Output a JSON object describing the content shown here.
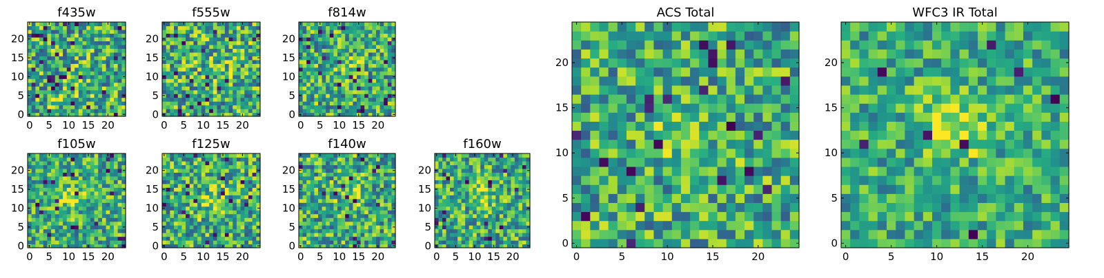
{
  "chart_data": [
    {
      "type": "heatmap",
      "title": "f435w",
      "x_ticks": [
        "0",
        "5",
        "10",
        "15",
        "20"
      ],
      "y_ticks": [
        "0",
        "5",
        "10",
        "15",
        "20"
      ],
      "xlim": [
        -0.5,
        24.5
      ],
      "ylim": [
        -0.5,
        24.5
      ],
      "grid_size": 25,
      "colormap": "viridis",
      "seed": 11,
      "blob": {
        "x": 11,
        "y": 4,
        "sigma": 4.5,
        "amp": 0.08
      },
      "noise": 0.36,
      "dark_fraction": 0.05
    },
    {
      "type": "heatmap",
      "title": "f555w",
      "x_ticks": [
        "0",
        "5",
        "10",
        "15",
        "20"
      ],
      "y_ticks": [
        "0",
        "5",
        "10",
        "15",
        "20"
      ],
      "xlim": [
        -0.5,
        24.5
      ],
      "ylim": [
        -0.5,
        24.5
      ],
      "grid_size": 25,
      "colormap": "viridis",
      "seed": 23,
      "blob": {
        "x": 14,
        "y": 12,
        "sigma": 3.5,
        "amp": 0.1
      },
      "noise": 0.36,
      "dark_fraction": 0.03
    },
    {
      "type": "heatmap",
      "title": "f814w",
      "x_ticks": [
        "0",
        "5",
        "10",
        "15",
        "20"
      ],
      "y_ticks": [
        "0",
        "5",
        "10",
        "15",
        "20"
      ],
      "xlim": [
        -0.5,
        24.5
      ],
      "ylim": [
        -0.5,
        24.5
      ],
      "grid_size": 25,
      "colormap": "viridis",
      "seed": 37,
      "blob": {
        "x": 12,
        "y": 13,
        "sigma": 2.2,
        "amp": 0.22
      },
      "noise": 0.34,
      "dark_fraction": 0.03
    },
    {
      "type": "heatmap",
      "title": "f105w",
      "x_ticks": [
        "0",
        "5",
        "10",
        "15",
        "20"
      ],
      "y_ticks": [
        "0",
        "5",
        "10",
        "15",
        "20"
      ],
      "xlim": [
        -0.5,
        24.5
      ],
      "ylim": [
        -0.5,
        24.5
      ],
      "grid_size": 25,
      "colormap": "viridis",
      "seed": 41,
      "blob": {
        "x": 11,
        "y": 13,
        "sigma": 2.5,
        "amp": 0.3
      },
      "noise": 0.32,
      "dark_fraction": 0.03
    },
    {
      "type": "heatmap",
      "title": "f125w",
      "x_ticks": [
        "0",
        "5",
        "10",
        "15",
        "20"
      ],
      "y_ticks": [
        "0",
        "5",
        "10",
        "15",
        "20"
      ],
      "xlim": [
        -0.5,
        24.5
      ],
      "ylim": [
        -0.5,
        24.5
      ],
      "grid_size": 25,
      "colormap": "viridis",
      "seed": 53,
      "blob": {
        "x": 12,
        "y": 12,
        "sigma": 3.0,
        "amp": 0.18
      },
      "noise": 0.34,
      "dark_fraction": 0.03
    },
    {
      "type": "heatmap",
      "title": "f140w",
      "x_ticks": [
        "0",
        "5",
        "10",
        "15",
        "20"
      ],
      "y_ticks": [
        "0",
        "5",
        "10",
        "15",
        "20"
      ],
      "xlim": [
        -0.5,
        24.5
      ],
      "ylim": [
        -0.5,
        24.5
      ],
      "grid_size": 25,
      "colormap": "viridis",
      "seed": 67,
      "blob": {
        "x": 14,
        "y": 13,
        "sigma": 3.0,
        "amp": 0.12
      },
      "noise": 0.34,
      "dark_fraction": 0.03
    },
    {
      "type": "heatmap",
      "title": "f160w",
      "x_ticks": [
        "0",
        "5",
        "10",
        "15",
        "20"
      ],
      "y_ticks": [
        "0",
        "5",
        "10",
        "15",
        "20"
      ],
      "xlim": [
        -0.5,
        24.5
      ],
      "ylim": [
        -0.5,
        24.5
      ],
      "grid_size": 25,
      "colormap": "viridis",
      "seed": 79,
      "blob": {
        "x": 12,
        "y": 14,
        "sigma": 2.8,
        "amp": 0.2
      },
      "noise": 0.32,
      "dark_fraction": 0.04
    },
    {
      "type": "heatmap",
      "title": "ACS Total",
      "x_ticks": [
        "0",
        "5",
        "10",
        "15",
        "20"
      ],
      "y_ticks": [
        "0",
        "5",
        "10",
        "15",
        "20"
      ],
      "xlim": [
        -0.5,
        24.5
      ],
      "ylim": [
        -0.5,
        24.5
      ],
      "grid_size": 25,
      "colormap": "viridis",
      "seed": 97,
      "blob": {
        "x": 12,
        "y": 12,
        "sigma": 2.5,
        "amp": 0.22
      },
      "noise": 0.32,
      "dark_fraction": 0.035
    },
    {
      "type": "heatmap",
      "title": "WFC3 IR Total",
      "x_ticks": [
        "0",
        "5",
        "10",
        "15",
        "20"
      ],
      "y_ticks": [
        "0",
        "5",
        "10",
        "15",
        "20"
      ],
      "xlim": [
        -0.5,
        24.5
      ],
      "ylim": [
        -0.5,
        24.5
      ],
      "grid_size": 25,
      "colormap": "viridis",
      "seed": 113,
      "blob": {
        "x": 12,
        "y": 13,
        "sigma": 2.6,
        "amp": 0.35
      },
      "noise": 0.26,
      "dark_fraction": 0.02
    }
  ]
}
